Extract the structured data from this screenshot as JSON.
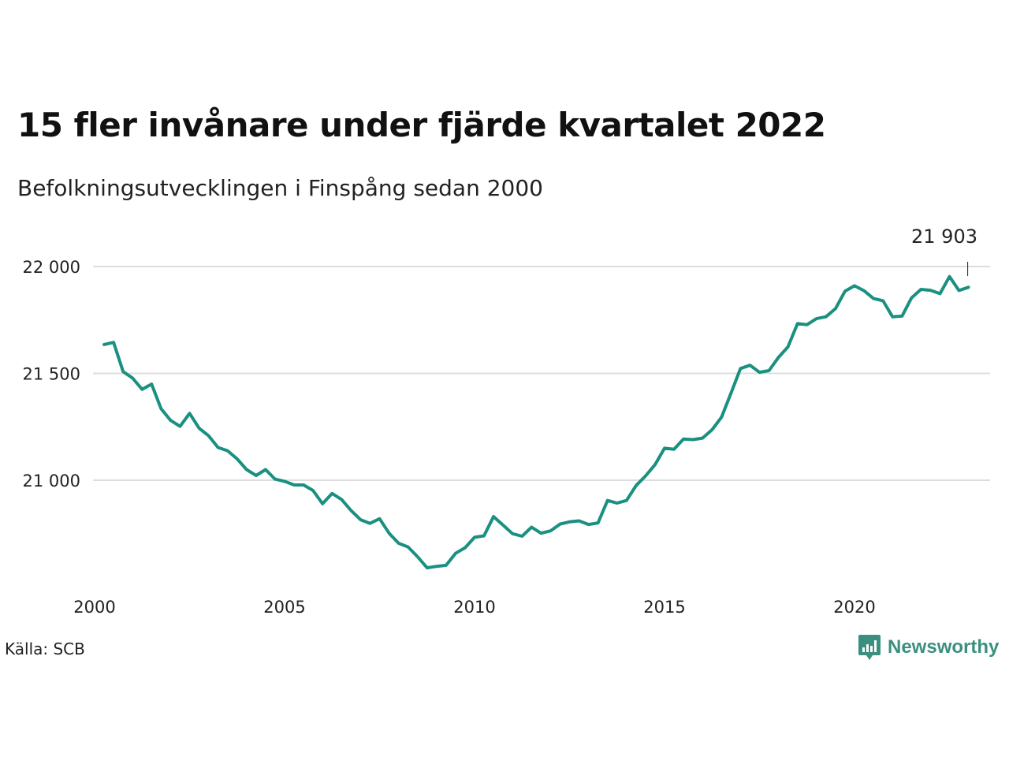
{
  "title": "15 fler invånare under fjärde kvartalet 2022",
  "subtitle": "Befolkningsutvecklingen i Finspång sedan 2000",
  "source": "Källa: SCB",
  "brand": {
    "name": "Newsworthy",
    "icon": "newsworthy-logo-icon",
    "color": "#3b8f7e"
  },
  "colors": {
    "line": "#1a9080",
    "grid": "#dddddd"
  },
  "chart_data": {
    "type": "line",
    "title": "15 fler invånare under fjärde kvartalet 2022",
    "subtitle": "Befolkningsutvecklingen i Finspång sedan 2000",
    "xlabel": "",
    "ylabel": "",
    "ylim": [
      20550,
      22050
    ],
    "xlim": [
      2000,
      2023.5
    ],
    "grid": true,
    "legend": "none",
    "x_ticks": [
      2000,
      2005,
      2010,
      2015,
      2020
    ],
    "x_tick_labels": [
      "2000",
      "2005",
      "2010",
      "2015",
      "2020"
    ],
    "y_ticks": [
      21000,
      21500,
      22000
    ],
    "y_tick_labels": [
      "21 000",
      "21 500",
      "22 000"
    ],
    "end_label": "21 903",
    "x": [
      2000.25,
      2000.5,
      2000.75,
      2001.0,
      2001.25,
      2001.5,
      2001.75,
      2002.0,
      2002.25,
      2002.5,
      2002.75,
      2003.0,
      2003.25,
      2003.5,
      2003.75,
      2004.0,
      2004.25,
      2004.5,
      2004.75,
      2005.0,
      2005.25,
      2005.5,
      2005.75,
      2006.0,
      2006.25,
      2006.5,
      2006.75,
      2007.0,
      2007.25,
      2007.5,
      2007.75,
      2008.0,
      2008.25,
      2008.5,
      2008.75,
      2009.0,
      2009.25,
      2009.5,
      2009.75,
      2010.0,
      2010.25,
      2010.5,
      2010.75,
      2011.0,
      2011.25,
      2011.5,
      2011.75,
      2012.0,
      2012.25,
      2012.5,
      2012.75,
      2013.0,
      2013.25,
      2013.5,
      2013.75,
      2014.0,
      2014.25,
      2014.5,
      2014.75,
      2015.0,
      2015.25,
      2015.5,
      2015.75,
      2016.0,
      2016.25,
      2016.5,
      2016.75,
      2017.0,
      2017.25,
      2017.5,
      2017.75,
      2018.0,
      2018.25,
      2018.5,
      2018.75,
      2019.0,
      2019.25,
      2019.5,
      2019.75,
      2020.0,
      2020.25,
      2020.5,
      2020.75,
      2021.0,
      2021.25,
      2021.5,
      2021.75,
      2022.0,
      2022.25,
      2022.5,
      2022.75,
      2023.0
    ],
    "series": [
      {
        "values": [
          21635,
          21645,
          21508,
          21478,
          21425,
          21450,
          21335,
          21280,
          21252,
          21313,
          21243,
          21208,
          21153,
          21138,
          21100,
          21050,
          21022,
          21050,
          21005,
          20995,
          20978,
          20978,
          20952,
          20890,
          20938,
          20910,
          20858,
          20815,
          20798,
          20820,
          20752,
          20705,
          20688,
          20642,
          20590,
          20597,
          20602,
          20658,
          20684,
          20733,
          20740,
          20830,
          20790,
          20750,
          20738,
          20780,
          20752,
          20763,
          20795,
          20805,
          20810,
          20793,
          20800,
          20905,
          20893,
          20905,
          20975,
          21020,
          21073,
          21150,
          21145,
          21193,
          21190,
          21197,
          21236,
          21295,
          21408,
          21523,
          21538,
          21505,
          21513,
          21575,
          21624,
          21733,
          21728,
          21756,
          21765,
          21803,
          21885,
          21910,
          21887,
          21850,
          21840,
          21765,
          21768,
          21853,
          21893,
          21889,
          21873,
          21953,
          21888,
          21903
        ]
      }
    ]
  }
}
